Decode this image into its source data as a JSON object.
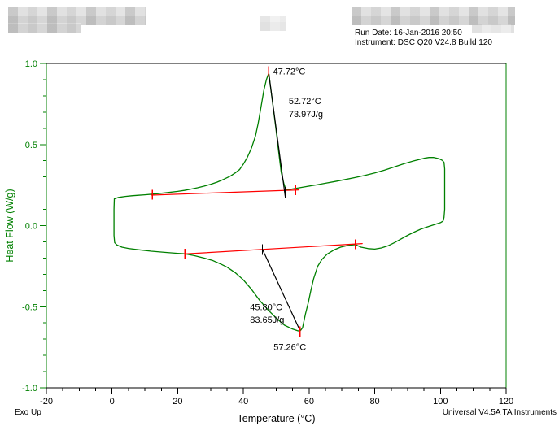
{
  "header": {
    "run_date": "Run Date: 16-Jan-2016 20:50",
    "instrument": "Instrument: DSC Q20 V24.8 Build 120"
  },
  "footer": {
    "exo_up": "Exo Up",
    "software": "Universal V4.5A TA Instruments"
  },
  "colors": {
    "curve_green": "#008000",
    "axis_green": "#008000",
    "baseline_red": "#ff0000",
    "annotation_black": "#000000"
  },
  "chart_data": {
    "type": "line",
    "title": "",
    "xlabel": "Temperature (°C)",
    "ylabel": "Heat Flow (W/g)",
    "xlim": [
      -20,
      120
    ],
    "ylim": [
      -1.0,
      1.0
    ],
    "x_major_step": 20,
    "x_minor_step": 5,
    "y_major_step": 0.5,
    "y_minor_step": 0.1,
    "grid": false,
    "legend": "none",
    "series": [
      {
        "name": "dsc-heat-cool-loop",
        "color": "#008000",
        "width": 1.3,
        "points": [
          [
            0.7,
            0.165
          ],
          [
            2,
            0.174
          ],
          [
            4,
            0.18
          ],
          [
            6,
            0.184
          ],
          [
            8,
            0.187
          ],
          [
            10,
            0.19
          ],
          [
            12.3,
            0.194
          ],
          [
            14,
            0.197
          ],
          [
            17,
            0.204
          ],
          [
            20,
            0.211
          ],
          [
            22,
            0.217
          ],
          [
            24,
            0.225
          ],
          [
            26,
            0.233
          ],
          [
            28,
            0.243
          ],
          [
            30,
            0.254
          ],
          [
            32,
            0.268
          ],
          [
            34,
            0.285
          ],
          [
            36,
            0.305
          ],
          [
            37.5,
            0.325
          ],
          [
            38.8,
            0.345
          ],
          [
            40,
            0.379
          ],
          [
            41.2,
            0.421
          ],
          [
            42.5,
            0.48
          ],
          [
            43.7,
            0.555
          ],
          [
            44.5,
            0.631
          ],
          [
            45.3,
            0.723
          ],
          [
            46.2,
            0.832
          ],
          [
            47.0,
            0.9
          ],
          [
            47.72,
            0.94
          ],
          [
            48.2,
            0.866
          ],
          [
            49.05,
            0.731
          ],
          [
            49.9,
            0.597
          ],
          [
            50.7,
            0.462
          ],
          [
            51.5,
            0.328
          ],
          [
            52.3,
            0.261
          ],
          [
            52.9,
            0.224
          ],
          [
            54,
            0.222
          ],
          [
            55.5,
            0.228
          ],
          [
            57,
            0.233
          ],
          [
            59,
            0.24
          ],
          [
            62,
            0.25
          ],
          [
            65,
            0.261
          ],
          [
            68,
            0.272
          ],
          [
            71,
            0.284
          ],
          [
            74,
            0.296
          ],
          [
            77,
            0.31
          ],
          [
            80,
            0.325
          ],
          [
            83,
            0.342
          ],
          [
            86,
            0.362
          ],
          [
            89,
            0.382
          ],
          [
            92,
            0.4
          ],
          [
            95,
            0.415
          ],
          [
            96.5,
            0.42
          ],
          [
            98,
            0.42
          ],
          [
            99.5,
            0.413
          ],
          [
            100.6,
            0.402
          ],
          [
            101.1,
            0.39
          ],
          [
            101.3,
            0.35
          ],
          [
            101.3,
            0.1
          ],
          [
            101.1,
            0.05
          ],
          [
            100.8,
            0.028
          ],
          [
            100,
            0.018
          ],
          [
            98,
            0.005
          ],
          [
            96,
            -0.008
          ],
          [
            94,
            -0.022
          ],
          [
            92,
            -0.04
          ],
          [
            90,
            -0.06
          ],
          [
            88,
            -0.082
          ],
          [
            86,
            -0.105
          ],
          [
            84,
            -0.125
          ],
          [
            82,
            -0.138
          ],
          [
            80,
            -0.145
          ],
          [
            78,
            -0.142
          ],
          [
            75.8,
            -0.133
          ],
          [
            74.1,
            -0.117
          ],
          [
            72,
            -0.122
          ],
          [
            69.6,
            -0.133
          ],
          [
            67.6,
            -0.15
          ],
          [
            65.5,
            -0.176
          ],
          [
            63.9,
            -0.209
          ],
          [
            62.6,
            -0.251
          ],
          [
            61.4,
            -0.327
          ],
          [
            60.6,
            -0.394
          ],
          [
            59.8,
            -0.47
          ],
          [
            58.9,
            -0.545
          ],
          [
            58,
            -0.63
          ],
          [
            57.26,
            -0.65
          ],
          [
            56.5,
            -0.648
          ],
          [
            55,
            -0.638
          ],
          [
            52.5,
            -0.614
          ],
          [
            50,
            -0.57
          ],
          [
            47.5,
            -0.52
          ],
          [
            45,
            -0.462
          ],
          [
            42.5,
            -0.394
          ],
          [
            40,
            -0.335
          ],
          [
            37.5,
            -0.29
          ],
          [
            35,
            -0.256
          ],
          [
            33,
            -0.236
          ],
          [
            30.5,
            -0.214
          ],
          [
            28,
            -0.2
          ],
          [
            25,
            -0.185
          ],
          [
            22.2,
            -0.174
          ],
          [
            20,
            -0.171
          ],
          [
            16,
            -0.165
          ],
          [
            12,
            -0.158
          ],
          [
            8,
            -0.149
          ],
          [
            5,
            -0.141
          ],
          [
            3,
            -0.133
          ],
          [
            1.5,
            -0.12
          ],
          [
            0.8,
            -0.105
          ],
          [
            0.6,
            -0.06
          ],
          [
            0.6,
            0.1
          ],
          [
            0.7,
            0.165
          ]
        ]
      },
      {
        "name": "crystallization-integration-baseline",
        "color": "#ff0000",
        "width": 1.2,
        "points": [
          [
            12.1,
            0.188
          ],
          [
            56.8,
            0.22
          ]
        ]
      },
      {
        "name": "melting-integration-baseline",
        "color": "#ff0000",
        "width": 1.2,
        "points": [
          [
            21.9,
            -0.175
          ],
          [
            76.2,
            -0.111
          ]
        ]
      },
      {
        "name": "crystallization-onset-line",
        "color": "#000000",
        "width": 1.2,
        "points": [
          [
            47.72,
            0.94
          ],
          [
            52.72,
            0.18
          ]
        ]
      },
      {
        "name": "melting-onset-line",
        "color": "#000000",
        "width": 1.2,
        "points": [
          [
            45.8,
            -0.147
          ],
          [
            57.26,
            -0.648
          ]
        ]
      }
    ],
    "markers": [
      {
        "name": "crystallization-limit-left",
        "x": 12.3,
        "y": 0.19,
        "h": 12,
        "color": "#ff0000"
      },
      {
        "name": "crystallization-limit-right",
        "x": 55.9,
        "y": 0.219,
        "h": 12,
        "color": "#ff0000"
      },
      {
        "name": "crystallization-peak-tick",
        "x": 47.72,
        "y": 0.95,
        "h": 13,
        "color": "#ff0000"
      },
      {
        "name": "melting-limit-left",
        "x": 22.2,
        "y": -0.174,
        "h": 12,
        "color": "#ff0000"
      },
      {
        "name": "melting-limit-right",
        "x": 74.1,
        "y": -0.116,
        "h": 12,
        "color": "#ff0000"
      },
      {
        "name": "melting-peak-tick",
        "x": 57.26,
        "y": -0.655,
        "h": 13,
        "color": "#ff0000"
      },
      {
        "name": "crystallization-onset-tick",
        "x": 52.72,
        "y": 0.205,
        "h": 13,
        "color": "#000000"
      },
      {
        "name": "melting-onset-tick",
        "x": 45.8,
        "y": -0.147,
        "h": 13,
        "color": "#000000"
      }
    ],
    "annotations": [
      {
        "name": "crystallization-peak-temp",
        "text": "47.72°C",
        "x": 49.0,
        "y": 0.952,
        "anchor": "start"
      },
      {
        "name": "crystallization-onset-temp",
        "text": "52.72°C",
        "x": 53.8,
        "y": 0.77,
        "anchor": "start"
      },
      {
        "name": "crystallization-enthalpy",
        "text": "73.97J/g",
        "x": 53.8,
        "y": 0.69,
        "anchor": "start"
      },
      {
        "name": "melting-onset-temp",
        "text": "45.80°C",
        "x": 42.0,
        "y": -0.5,
        "anchor": "start"
      },
      {
        "name": "melting-enthalpy",
        "text": "83.65J/g",
        "x": 42.0,
        "y": -0.578,
        "anchor": "start"
      },
      {
        "name": "melting-peak-temp",
        "text": "57.26°C",
        "x": 49.2,
        "y": -0.748,
        "anchor": "start"
      }
    ]
  }
}
